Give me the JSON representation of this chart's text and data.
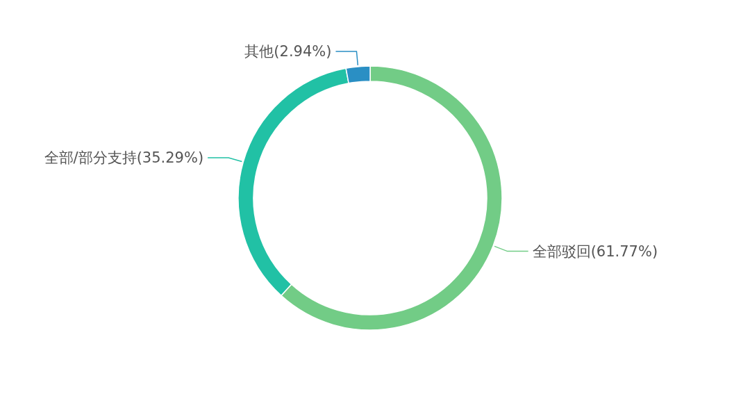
{
  "chart_data": {
    "type": "donut",
    "categories": [
      "全部驳回",
      "全部/部分支持",
      "其他"
    ],
    "values": [
      61.77,
      35.29,
      2.94
    ],
    "colors": [
      "#72cc86",
      "#21c1a5",
      "#2a8fc4"
    ],
    "value_labels": [
      "(61.77%)",
      "(35.29%)",
      "(2.94%)"
    ]
  }
}
